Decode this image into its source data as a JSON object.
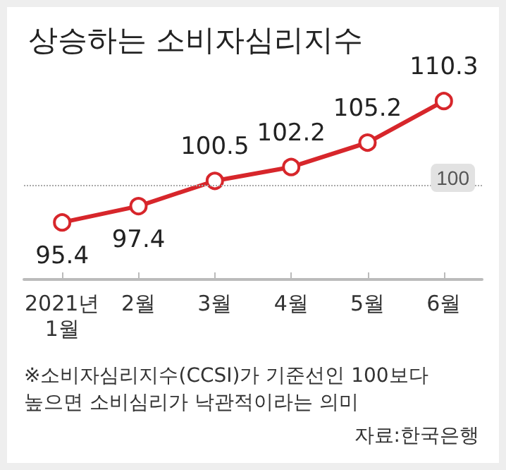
{
  "chart_data": {
    "type": "line",
    "title": "상승하는 소비자심리지수",
    "categories": [
      "2021년\n1월",
      "2월",
      "3월",
      "4월",
      "5월",
      "6월"
    ],
    "series": [
      {
        "color": "#d7262b",
        "values": [
          95.4,
          97.4,
          100.5,
          102.2,
          105.2,
          110.3
        ]
      }
    ],
    "data_labels": true,
    "marker": "circle",
    "line_style": "solid",
    "grid": false,
    "tick_labels": "x",
    "ref_lines": [
      {
        "axis": "y",
        "value": 100,
        "label": "100",
        "line_style": "dotted",
        "color": "#aaaaaa"
      }
    ],
    "annotations": [
      "※소비자심리지수(CCSI)가 기준선인 100보다\n높으면 소비심리가 낙관적이라는 의미",
      "자료:한국은행"
    ]
  }
}
